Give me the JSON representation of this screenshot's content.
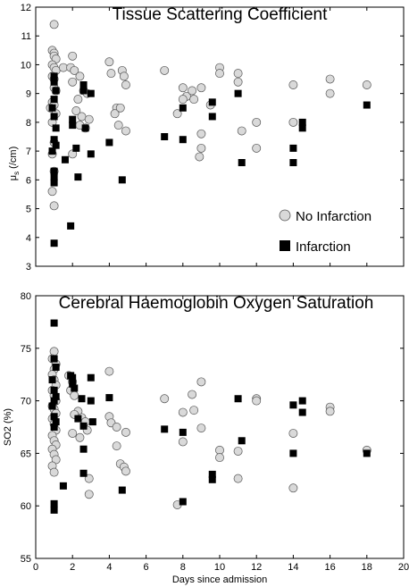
{
  "chart_data": [
    {
      "type": "scatter",
      "title": "Tissue Scattering Coefficient",
      "ylabel_main": "μ",
      "ylabel_sub": "s",
      "ylabel_unit": " (/cm)",
      "xlim": [
        0,
        20
      ],
      "ylim": [
        3,
        12
      ],
      "yticks": [
        3,
        4,
        5,
        6,
        7,
        8,
        9,
        10,
        11,
        12
      ],
      "xticks": [],
      "legend": {
        "placement": "lower-right",
        "entries": [
          "No Infarction",
          "Infarction"
        ]
      },
      "series": [
        {
          "name": "No Infarction",
          "marker": "circle",
          "color": "#d9d9d9",
          "points": [
            [
              1.0,
              11.4
            ],
            [
              0.9,
              10.5
            ],
            [
              1.0,
              10.4
            ],
            [
              1.0,
              10.3
            ],
            [
              1.1,
              10.2
            ],
            [
              0.9,
              10.0
            ],
            [
              1.0,
              9.9
            ],
            [
              1.1,
              9.8
            ],
            [
              0.9,
              9.6
            ],
            [
              1.0,
              9.5
            ],
            [
              1.0,
              9.2
            ],
            [
              1.1,
              9.1
            ],
            [
              0.9,
              8.7
            ],
            [
              1.0,
              8.6
            ],
            [
              0.8,
              8.5
            ],
            [
              1.1,
              8.3
            ],
            [
              0.9,
              8.0
            ],
            [
              1.0,
              7.3
            ],
            [
              0.9,
              6.9
            ],
            [
              1.0,
              6.3
            ],
            [
              0.9,
              5.6
            ],
            [
              1.0,
              5.1
            ],
            [
              1.5,
              9.9
            ],
            [
              1.9,
              9.9
            ],
            [
              2.0,
              10.3
            ],
            [
              2.1,
              9.8
            ],
            [
              2.4,
              9.6
            ],
            [
              2.0,
              9.4
            ],
            [
              2.6,
              9.1
            ],
            [
              2.8,
              9.0
            ],
            [
              2.3,
              8.8
            ],
            [
              2.2,
              8.4
            ],
            [
              2.5,
              8.2
            ],
            [
              2.9,
              8.1
            ],
            [
              2.7,
              7.8
            ],
            [
              2.4,
              7.9
            ],
            [
              2.0,
              6.9
            ],
            [
              4.0,
              10.1
            ],
            [
              4.1,
              9.7
            ],
            [
              4.4,
              8.5
            ],
            [
              4.3,
              8.3
            ],
            [
              4.6,
              8.5
            ],
            [
              4.5,
              7.9
            ],
            [
              4.7,
              9.8
            ],
            [
              4.8,
              9.6
            ],
            [
              4.9,
              9.3
            ],
            [
              4.9,
              7.7
            ],
            [
              7.0,
              9.8
            ],
            [
              7.7,
              8.3
            ],
            [
              8.0,
              9.2
            ],
            [
              8.2,
              8.9
            ],
            [
              8.0,
              8.8
            ],
            [
              8.5,
              9.1
            ],
            [
              8.6,
              8.8
            ],
            [
              9.0,
              9.2
            ],
            [
              9.0,
              7.6
            ],
            [
              9.0,
              7.1
            ],
            [
              8.9,
              6.8
            ],
            [
              9.5,
              8.6
            ],
            [
              10.0,
              9.9
            ],
            [
              10.0,
              9.7
            ],
            [
              11.0,
              9.7
            ],
            [
              11.0,
              9.4
            ],
            [
              11.2,
              7.7
            ],
            [
              12.0,
              8.0
            ],
            [
              12.0,
              7.1
            ],
            [
              14.0,
              9.3
            ],
            [
              14.0,
              8.0
            ],
            [
              16.0,
              9.5
            ],
            [
              16.0,
              9.0
            ],
            [
              18.0,
              9.3
            ]
          ]
        },
        {
          "name": "Infarction",
          "marker": "square",
          "color": "#000000",
          "points": [
            [
              1.0,
              9.6
            ],
            [
              1.0,
              9.4
            ],
            [
              1.1,
              9.1
            ],
            [
              1.0,
              8.8
            ],
            [
              0.9,
              8.5
            ],
            [
              1.0,
              8.2
            ],
            [
              1.1,
              7.8
            ],
            [
              1.0,
              7.4
            ],
            [
              1.1,
              7.2
            ],
            [
              0.9,
              7.0
            ],
            [
              1.0,
              6.3
            ],
            [
              1.0,
              6.1
            ],
            [
              1.0,
              5.9
            ],
            [
              1.0,
              3.8
            ],
            [
              1.6,
              6.7
            ],
            [
              1.9,
              4.4
            ],
            [
              2.0,
              8.1
            ],
            [
              2.0,
              7.9
            ],
            [
              2.2,
              7.1
            ],
            [
              2.3,
              6.1
            ],
            [
              2.6,
              9.3
            ],
            [
              2.6,
              9.1
            ],
            [
              2.7,
              7.8
            ],
            [
              3.0,
              9.0
            ],
            [
              3.0,
              6.9
            ],
            [
              4.0,
              7.3
            ],
            [
              4.7,
              6.0
            ],
            [
              7.0,
              7.5
            ],
            [
              8.0,
              8.5
            ],
            [
              8.0,
              7.4
            ],
            [
              9.6,
              8.7
            ],
            [
              9.6,
              8.2
            ],
            [
              11.0,
              9.0
            ],
            [
              11.2,
              6.6
            ],
            [
              14.0,
              7.1
            ],
            [
              14.0,
              6.6
            ],
            [
              14.5,
              8.0
            ],
            [
              14.5,
              7.8
            ],
            [
              18.0,
              8.6
            ]
          ]
        }
      ]
    },
    {
      "type": "scatter",
      "title": "Cerebral Haemoglobin Oxygen Saturation",
      "ylabel": "SO2 (%)",
      "xlabel": "Days since admission",
      "xlim": [
        0,
        20
      ],
      "ylim": [
        55,
        80
      ],
      "yticks": [
        55,
        60,
        65,
        70,
        75,
        80
      ],
      "xticks": [
        0,
        2,
        4,
        6,
        8,
        10,
        12,
        14,
        16,
        18,
        20
      ],
      "series": [
        {
          "name": "No Infarction",
          "marker": "circle",
          "color": "#d9d9d9",
          "points": [
            [
              1.0,
              74.7
            ],
            [
              0.9,
              74.0
            ],
            [
              1.1,
              73.5
            ],
            [
              1.0,
              73.0
            ],
            [
              0.9,
              72.5
            ],
            [
              1.0,
              72.0
            ],
            [
              1.1,
              71.5
            ],
            [
              0.9,
              71.0
            ],
            [
              1.0,
              70.5
            ],
            [
              1.1,
              70.0
            ],
            [
              0.9,
              69.5
            ],
            [
              1.0,
              69.2
            ],
            [
              1.1,
              68.8
            ],
            [
              0.9,
              68.3
            ],
            [
              1.0,
              67.8
            ],
            [
              1.1,
              67.2
            ],
            [
              0.9,
              66.7
            ],
            [
              1.0,
              66.2
            ],
            [
              1.1,
              65.8
            ],
            [
              0.9,
              65.4
            ],
            [
              1.0,
              64.9
            ],
            [
              1.1,
              64.4
            ],
            [
              0.9,
              63.8
            ],
            [
              1.0,
              63.2
            ],
            [
              1.8,
              72.4
            ],
            [
              2.0,
              71.8
            ],
            [
              1.9,
              71.0
            ],
            [
              2.1,
              70.5
            ],
            [
              2.3,
              69.0
            ],
            [
              2.1,
              68.7
            ],
            [
              2.5,
              68.4
            ],
            [
              2.7,
              68.0
            ],
            [
              2.8,
              67.2
            ],
            [
              2.0,
              66.9
            ],
            [
              2.4,
              66.5
            ],
            [
              2.9,
              62.6
            ],
            [
              2.9,
              61.1
            ],
            [
              4.0,
              72.8
            ],
            [
              4.0,
              68.5
            ],
            [
              4.1,
              67.9
            ],
            [
              4.4,
              67.5
            ],
            [
              4.4,
              65.7
            ],
            [
              4.6,
              64.0
            ],
            [
              4.8,
              63.7
            ],
            [
              4.9,
              63.3
            ],
            [
              4.9,
              67.0
            ],
            [
              7.0,
              70.2
            ],
            [
              7.7,
              60.1
            ],
            [
              8.0,
              68.9
            ],
            [
              8.0,
              66.1
            ],
            [
              8.5,
              70.6
            ],
            [
              8.6,
              69.1
            ],
            [
              9.0,
              71.8
            ],
            [
              9.0,
              67.4
            ],
            [
              10.0,
              65.3
            ],
            [
              10.0,
              64.6
            ],
            [
              11.0,
              65.2
            ],
            [
              11.0,
              62.6
            ],
            [
              12.0,
              70.2
            ],
            [
              12.0,
              70.0
            ],
            [
              14.0,
              66.9
            ],
            [
              14.0,
              61.7
            ],
            [
              16.0,
              69.4
            ],
            [
              16.0,
              69.0
            ],
            [
              18.0,
              65.3
            ]
          ]
        },
        {
          "name": "Infarction",
          "marker": "square",
          "color": "#000000",
          "points": [
            [
              1.0,
              77.4
            ],
            [
              1.0,
              74.0
            ],
            [
              1.1,
              73.2
            ],
            [
              0.9,
              72.0
            ],
            [
              1.0,
              71.0
            ],
            [
              1.1,
              70.4
            ],
            [
              1.0,
              70.0
            ],
            [
              0.9,
              69.5
            ],
            [
              1.0,
              68.5
            ],
            [
              1.1,
              68.0
            ],
            [
              1.0,
              67.5
            ],
            [
              1.0,
              60.2
            ],
            [
              1.0,
              59.6
            ],
            [
              1.5,
              61.9
            ],
            [
              1.9,
              72.4
            ],
            [
              2.0,
              72.2
            ],
            [
              2.0,
              71.6
            ],
            [
              2.1,
              71.2
            ],
            [
              2.3,
              68.3
            ],
            [
              2.5,
              70.2
            ],
            [
              2.6,
              67.6
            ],
            [
              2.6,
              65.4
            ],
            [
              2.6,
              63.1
            ],
            [
              3.0,
              72.2
            ],
            [
              3.0,
              70.0
            ],
            [
              3.1,
              68.0
            ],
            [
              4.0,
              70.3
            ],
            [
              4.7,
              61.5
            ],
            [
              7.0,
              67.3
            ],
            [
              8.0,
              67.0
            ],
            [
              8.0,
              60.4
            ],
            [
              9.6,
              63.0
            ],
            [
              9.6,
              62.5
            ],
            [
              11.0,
              70.2
            ],
            [
              11.2,
              66.2
            ],
            [
              14.0,
              69.6
            ],
            [
              14.0,
              65.0
            ],
            [
              14.5,
              70.0
            ],
            [
              14.5,
              68.9
            ],
            [
              18.0,
              65.0
            ]
          ]
        }
      ]
    }
  ]
}
